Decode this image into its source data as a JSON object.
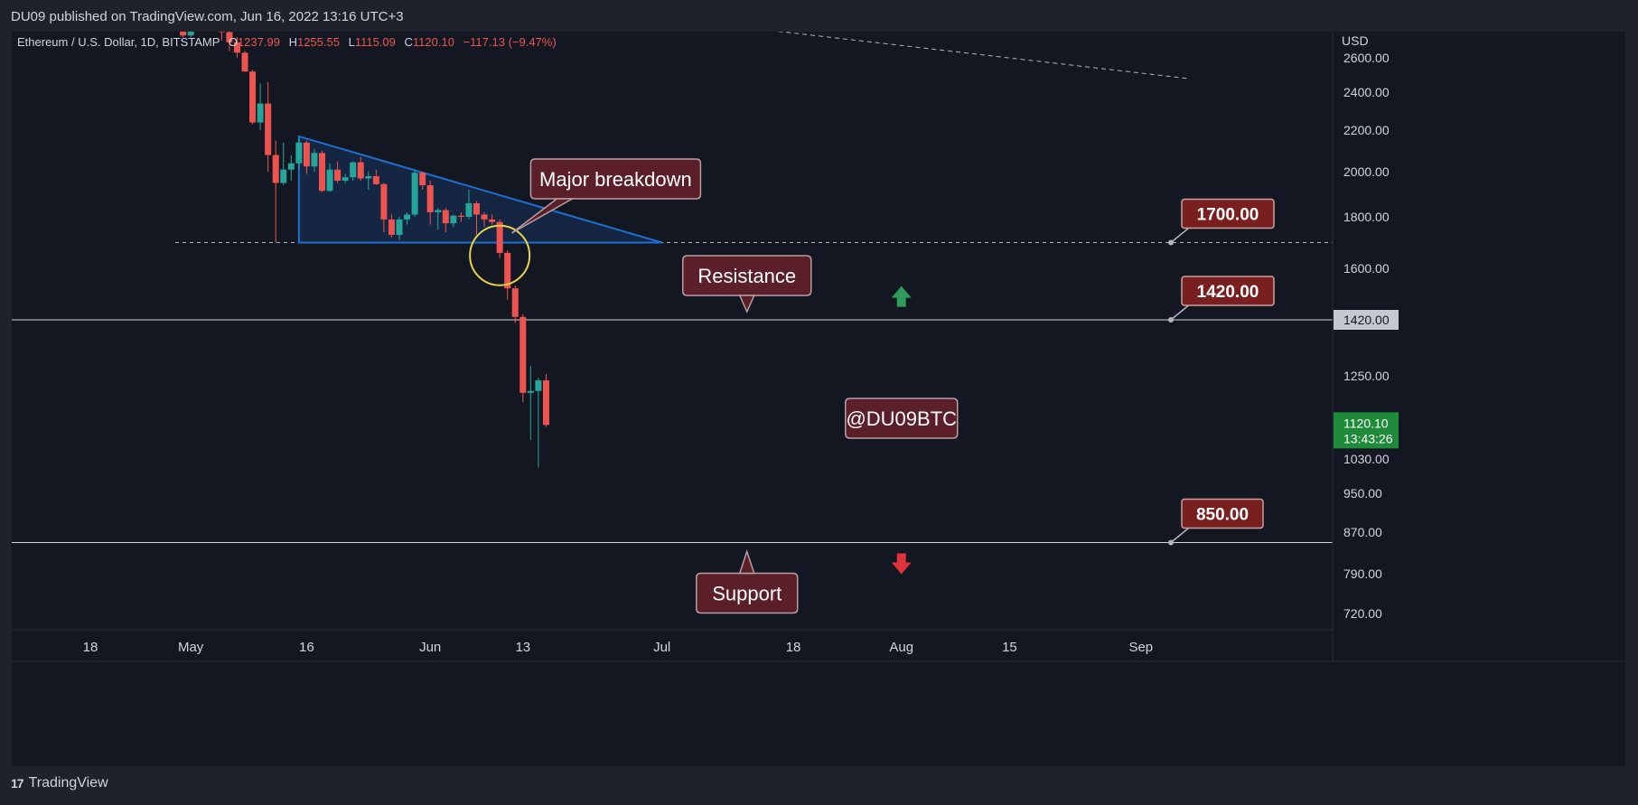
{
  "header": {
    "published": "DU09 published on TradingView.com, Jun 16, 2022 13:16 UTC+3"
  },
  "legend": {
    "symbol": "Ethereum / U.S. Dollar, 1D, BITSTAMP",
    "o_label": "O",
    "o_value": "1237.99",
    "h_label": "H",
    "h_value": "1255.55",
    "l_label": "L",
    "l_value": "1115.09",
    "c_label": "C",
    "c_value": "1120.10",
    "change": "−117.13 (−9.47%)"
  },
  "footer": {
    "brand": "TradingView",
    "logo": "17"
  },
  "colors": {
    "up": "#26a69a",
    "down": "#ef5350",
    "background": "#131722",
    "text": "#d1d4dc",
    "callout": "#5a1f28",
    "level_badge": "#7a1f1f",
    "triangle": "#1e6fd0",
    "circle": "#e8d34a"
  },
  "chart_data": {
    "type": "candlestick",
    "currency": "USD",
    "y_ticks": [
      2600,
      2400,
      2200,
      2000,
      1800,
      1600,
      1420,
      1250,
      1030,
      950,
      870,
      790,
      720
    ],
    "y_tick_labels": [
      "2600.00",
      "2400.00",
      "2200.00",
      "2000.00",
      "1800.00",
      "1600.00",
      "1420.00",
      "1250.00",
      "1030.00",
      "950.00",
      "870.00",
      "790.00",
      "720.00"
    ],
    "x_ticks": [
      {
        "label": "18",
        "date": "2022-04-18"
      },
      {
        "label": "May",
        "date": "2022-05-01"
      },
      {
        "label": "16",
        "date": "2022-05-16"
      },
      {
        "label": "Jun",
        "date": "2022-06-01"
      },
      {
        "label": "13",
        "date": "2022-06-13"
      },
      {
        "label": "Jul",
        "date": "2022-07-01"
      },
      {
        "label": "18",
        "date": "2022-07-18"
      },
      {
        "label": "Aug",
        "date": "2022-08-01"
      },
      {
        "label": "15",
        "date": "2022-08-15"
      },
      {
        "label": "Sep",
        "date": "2022-09-01"
      }
    ],
    "x_range": [
      "2022-04-10",
      "2022-09-08"
    ],
    "y_range": [
      680,
      2700
    ],
    "candles": [
      {
        "date": "2022-04-30",
        "o": 2820,
        "h": 2830,
        "l": 2720,
        "c": 2730
      },
      {
        "date": "2022-05-01",
        "o": 2730,
        "h": 2840,
        "l": 2720,
        "c": 2825
      },
      {
        "date": "2022-05-02",
        "o": 2825,
        "h": 2880,
        "l": 2780,
        "c": 2860
      },
      {
        "date": "2022-05-03",
        "o": 2860,
        "h": 2875,
        "l": 2760,
        "c": 2780
      },
      {
        "date": "2022-05-04",
        "o": 2780,
        "h": 2960,
        "l": 2770,
        "c": 2940
      },
      {
        "date": "2022-05-05",
        "o": 2940,
        "h": 2950,
        "l": 2700,
        "c": 2750
      },
      {
        "date": "2022-05-06",
        "o": 2750,
        "h": 2760,
        "l": 2640,
        "c": 2690
      },
      {
        "date": "2022-05-07",
        "o": 2690,
        "h": 2720,
        "l": 2600,
        "c": 2630
      },
      {
        "date": "2022-05-08",
        "o": 2630,
        "h": 2640,
        "l": 2520,
        "c": 2520
      },
      {
        "date": "2022-05-09",
        "o": 2520,
        "h": 2530,
        "l": 2230,
        "c": 2240
      },
      {
        "date": "2022-05-10",
        "o": 2240,
        "h": 2450,
        "l": 2200,
        "c": 2340
      },
      {
        "date": "2022-05-11",
        "o": 2340,
        "h": 2460,
        "l": 2000,
        "c": 2080
      },
      {
        "date": "2022-05-12",
        "o": 2080,
        "h": 2150,
        "l": 1700,
        "c": 1950
      },
      {
        "date": "2022-05-13",
        "o": 1950,
        "h": 2140,
        "l": 1940,
        "c": 2010
      },
      {
        "date": "2022-05-14",
        "o": 2010,
        "h": 2080,
        "l": 1960,
        "c": 2040
      },
      {
        "date": "2022-05-15",
        "o": 2040,
        "h": 2160,
        "l": 2010,
        "c": 2140
      },
      {
        "date": "2022-05-16",
        "o": 2140,
        "h": 2150,
        "l": 1990,
        "c": 2025
      },
      {
        "date": "2022-05-17",
        "o": 2025,
        "h": 2110,
        "l": 2000,
        "c": 2090
      },
      {
        "date": "2022-05-18",
        "o": 2090,
        "h": 2100,
        "l": 1910,
        "c": 1915
      },
      {
        "date": "2022-05-19",
        "o": 1915,
        "h": 2040,
        "l": 1910,
        "c": 2010
      },
      {
        "date": "2022-05-20",
        "o": 2010,
        "h": 2050,
        "l": 1950,
        "c": 1960
      },
      {
        "date": "2022-05-21",
        "o": 1960,
        "h": 1990,
        "l": 1950,
        "c": 1975
      },
      {
        "date": "2022-05-22",
        "o": 1975,
        "h": 2050,
        "l": 1960,
        "c": 2045
      },
      {
        "date": "2022-05-23",
        "o": 2045,
        "h": 2070,
        "l": 1960,
        "c": 1970
      },
      {
        "date": "2022-05-24",
        "o": 1970,
        "h": 2000,
        "l": 1920,
        "c": 1980
      },
      {
        "date": "2022-05-25",
        "o": 1980,
        "h": 2010,
        "l": 1940,
        "c": 1945
      },
      {
        "date": "2022-05-26",
        "o": 1945,
        "h": 1950,
        "l": 1740,
        "c": 1790
      },
      {
        "date": "2022-05-27",
        "o": 1790,
        "h": 1810,
        "l": 1720,
        "c": 1730
      },
      {
        "date": "2022-05-28",
        "o": 1730,
        "h": 1800,
        "l": 1710,
        "c": 1790
      },
      {
        "date": "2022-05-29",
        "o": 1790,
        "h": 1820,
        "l": 1770,
        "c": 1810
      },
      {
        "date": "2022-05-30",
        "o": 1810,
        "h": 2010,
        "l": 1800,
        "c": 1995
      },
      {
        "date": "2022-05-31",
        "o": 1995,
        "h": 2000,
        "l": 1920,
        "c": 1940
      },
      {
        "date": "2022-06-01",
        "o": 1940,
        "h": 1960,
        "l": 1770,
        "c": 1820
      },
      {
        "date": "2022-06-02",
        "o": 1820,
        "h": 1840,
        "l": 1750,
        "c": 1830
      },
      {
        "date": "2022-06-03",
        "o": 1830,
        "h": 1840,
        "l": 1740,
        "c": 1775
      },
      {
        "date": "2022-06-04",
        "o": 1775,
        "h": 1810,
        "l": 1760,
        "c": 1805
      },
      {
        "date": "2022-06-05",
        "o": 1805,
        "h": 1820,
        "l": 1780,
        "c": 1800
      },
      {
        "date": "2022-06-06",
        "o": 1800,
        "h": 1920,
        "l": 1790,
        "c": 1860
      },
      {
        "date": "2022-06-07",
        "o": 1860,
        "h": 1870,
        "l": 1730,
        "c": 1810
      },
      {
        "date": "2022-06-08",
        "o": 1810,
        "h": 1820,
        "l": 1760,
        "c": 1790
      },
      {
        "date": "2022-06-09",
        "o": 1790,
        "h": 1810,
        "l": 1770,
        "c": 1780
      },
      {
        "date": "2022-06-10",
        "o": 1780,
        "h": 1790,
        "l": 1640,
        "c": 1660
      },
      {
        "date": "2022-06-11",
        "o": 1660,
        "h": 1670,
        "l": 1490,
        "c": 1530
      },
      {
        "date": "2022-06-12",
        "o": 1530,
        "h": 1540,
        "l": 1410,
        "c": 1430
      },
      {
        "date": "2022-06-13",
        "o": 1430,
        "h": 1440,
        "l": 1180,
        "c": 1205
      },
      {
        "date": "2022-06-14",
        "o": 1205,
        "h": 1280,
        "l": 1080,
        "c": 1210
      },
      {
        "date": "2022-06-15",
        "o": 1210,
        "h": 1245,
        "l": 1010,
        "c": 1237.99
      },
      {
        "date": "2022-06-16",
        "o": 1237.99,
        "h": 1255.55,
        "l": 1115.09,
        "c": 1120.1
      }
    ],
    "price_badge": {
      "price": "1420.00"
    },
    "last_price": {
      "price": "1120.10",
      "countdown": "13:43:26"
    },
    "levels": [
      {
        "value": 1700,
        "label": "1700.00",
        "style": "dashed"
      },
      {
        "value": 1420,
        "label": "1420.00",
        "style": "solid",
        "name": "Resistance"
      },
      {
        "value": 850,
        "label": "850.00",
        "style": "solid",
        "name": "Support"
      }
    ],
    "annotations": {
      "breakdown": "Major breakdown",
      "resistance": "Resistance",
      "support": "Support",
      "watermark": "@DU09BTC"
    },
    "triangle": {
      "top": {
        "date": "2022-05-15",
        "price": 2170
      },
      "apex": {
        "date": "2022-07-01",
        "price": 1700
      },
      "base_left": {
        "date": "2022-05-15",
        "price": 1700
      }
    },
    "circle": {
      "date": "2022-06-10",
      "price": 1650
    },
    "trendline": {
      "start": {
        "date": "2022-07-15",
        "price": 2760
      },
      "end": {
        "date": "2022-09-07",
        "price": 2480
      }
    },
    "arrows": [
      {
        "direction": "up",
        "date": "2022-08-01",
        "price": 1500
      },
      {
        "direction": "down",
        "date": "2022-08-01",
        "price": 810
      }
    ]
  }
}
